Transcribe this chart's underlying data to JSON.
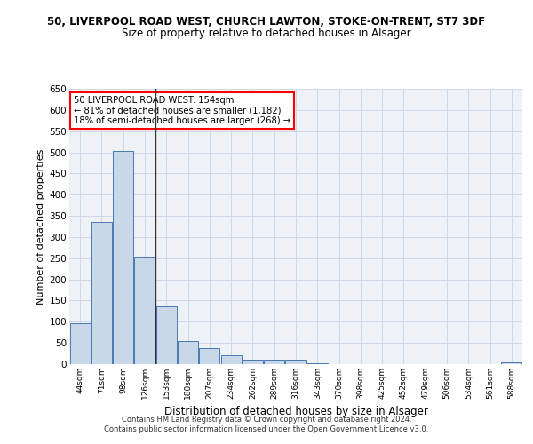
{
  "title_line1": "50, LIVERPOOL ROAD WEST, CHURCH LAWTON, STOKE-ON-TRENT, ST7 3DF",
  "title_line2": "Size of property relative to detached houses in Alsager",
  "xlabel": "Distribution of detached houses by size in Alsager",
  "ylabel": "Number of detached properties",
  "categories": [
    "44sqm",
    "71sqm",
    "98sqm",
    "126sqm",
    "153sqm",
    "180sqm",
    "207sqm",
    "234sqm",
    "262sqm",
    "289sqm",
    "316sqm",
    "343sqm",
    "370sqm",
    "398sqm",
    "425sqm",
    "452sqm",
    "479sqm",
    "506sqm",
    "534sqm",
    "561sqm",
    "588sqm"
  ],
  "values": [
    97,
    335,
    503,
    253,
    137,
    54,
    37,
    21,
    10,
    10,
    10,
    3,
    1,
    0,
    0,
    0,
    0,
    0,
    0,
    0,
    4
  ],
  "bar_color": "#c8d8e8",
  "bar_edge_color": "#4a7ab5",
  "highlight_bar_index": 3,
  "highlight_line_color": "#333333",
  "annotation_box_text": "50 LIVERPOOL ROAD WEST: 154sqm\n← 81% of detached houses are smaller (1,182)\n18% of semi-detached houses are larger (268) →",
  "ylim": [
    0,
    650
  ],
  "yticks": [
    0,
    50,
    100,
    150,
    200,
    250,
    300,
    350,
    400,
    450,
    500,
    550,
    600,
    650
  ],
  "grid_color": "#d0d8e8",
  "background_color": "#eef2f7",
  "footer_line1": "Contains HM Land Registry data © Crown copyright and database right 2024.",
  "footer_line2": "Contains public sector information licensed under the Open Government Licence v3.0."
}
